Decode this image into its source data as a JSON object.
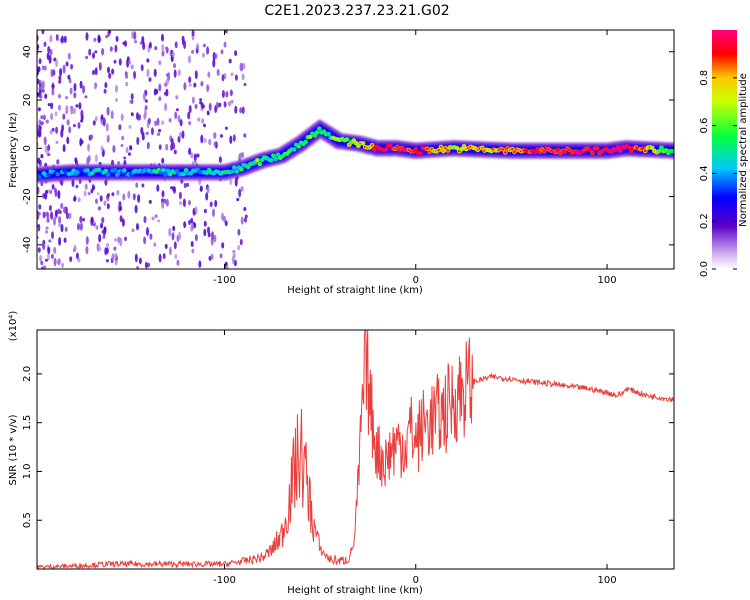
{
  "title": "C2E1.2023.237.23.21.G02",
  "chart_data": [
    {
      "type": "heatmap",
      "title": "C2E1.2023.237.23.21.G02",
      "xlabel": "Height of straight line (km)",
      "ylabel": "Frequency (Hz)",
      "xlim": [
        -198,
        135
      ],
      "ylim": [
        -50,
        49
      ],
      "x_ticks": [
        -100,
        0,
        100
      ],
      "x_tick_labels": [
        "-100",
        "0",
        "100"
      ],
      "y_ticks": [
        -40,
        -20,
        0,
        20,
        40
      ],
      "y_tick_labels": [
        "-40",
        "-20",
        "0",
        "20",
        "40"
      ],
      "colorbar": {
        "label": "Normalized spectral amplitude",
        "range": [
          0,
          1
        ],
        "ticks": [
          0.0,
          0.2,
          0.4,
          0.6,
          0.8
        ],
        "tick_labels": [
          "0.0",
          "0.2",
          "0.4",
          "0.6",
          "0.8"
        ]
      },
      "ridge": {
        "x": [
          -198,
          -180,
          -160,
          -140,
          -120,
          -100,
          -90,
          -80,
          -70,
          -60,
          -50,
          -40,
          -30,
          -20,
          -10,
          0,
          20,
          50,
          80,
          100,
          110,
          135
        ],
        "frequency": [
          -11,
          -10,
          -10,
          -10,
          -10,
          -10,
          -8,
          -5,
          -3,
          2,
          8,
          3,
          2,
          0,
          0,
          -1,
          0,
          -1,
          -1,
          -1,
          0,
          -1
        ],
        "amplitude": [
          0.35,
          0.4,
          0.4,
          0.45,
          0.45,
          0.45,
          0.5,
          0.55,
          0.5,
          0.55,
          0.5,
          0.6,
          0.7,
          0.85,
          0.9,
          0.9,
          0.7,
          0.8,
          0.95,
          0.95,
          0.98,
          0.5
        ]
      },
      "grid": false
    },
    {
      "type": "line",
      "xlabel": "Height of straight line (km)",
      "ylabel": "SNR (10 * v/v)",
      "y_multiplier": "(x10⁴)",
      "xlim": [
        -198,
        135
      ],
      "ylim": [
        0,
        2.45
      ],
      "x_ticks": [
        -100,
        0,
        100
      ],
      "x_tick_labels": [
        "-100",
        "0",
        "100"
      ],
      "y_ticks": [
        0.5,
        1.0,
        1.5,
        2.0
      ],
      "y_tick_labels": [
        "0.5",
        "1.0",
        "1.5",
        "2.0"
      ],
      "series": [
        {
          "color": "#e8403c",
          "x": [
            -198,
            -180,
            -160,
            -140,
            -120,
            -100,
            -90,
            -80,
            -75,
            -70,
            -66,
            -63,
            -60,
            -57,
            -54,
            -50,
            -45,
            -40,
            -35,
            -32,
            -30,
            -28,
            -26,
            -24,
            -20,
            -16,
            -12,
            -8,
            -5,
            -3,
            0,
            5,
            10,
            15,
            20,
            25,
            30,
            40,
            50,
            60,
            70,
            80,
            90,
            100,
            105,
            108,
            110,
            115,
            120,
            125,
            130,
            135
          ],
          "y": [
            0.02,
            0.03,
            0.05,
            0.05,
            0.05,
            0.05,
            0.08,
            0.12,
            0.2,
            0.35,
            0.7,
            1.05,
            1.2,
            0.9,
            0.5,
            0.2,
            0.1,
            0.08,
            0.1,
            0.3,
            0.9,
            1.6,
            2.15,
            1.7,
            1.2,
            1.1,
            1.25,
            1.3,
            1.25,
            1.45,
            1.3,
            1.5,
            1.55,
            1.6,
            1.75,
            1.85,
            1.92,
            1.97,
            1.95,
            1.92,
            1.9,
            1.87,
            1.85,
            1.81,
            1.78,
            1.8,
            1.85,
            1.82,
            1.78,
            1.77,
            1.75,
            1.74
          ]
        }
      ],
      "grid": false
    }
  ]
}
